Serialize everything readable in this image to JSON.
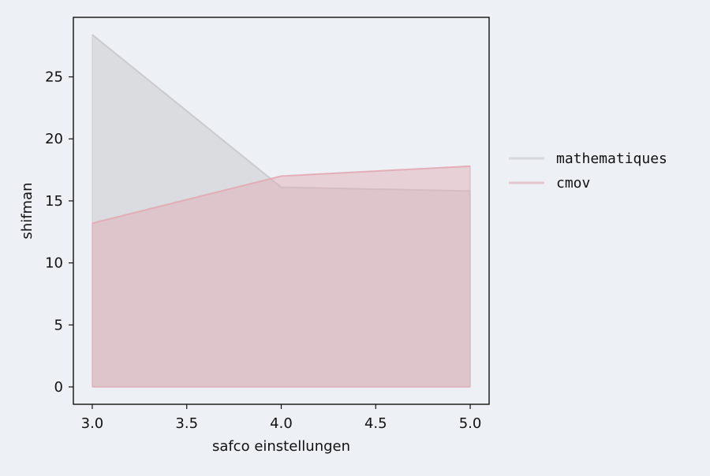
{
  "chart_data": {
    "type": "area",
    "title": "",
    "xlabel": "safco einstellungen",
    "ylabel": "shifman",
    "x": [
      3.0,
      4.0,
      5.0
    ],
    "x_ticks": [
      "3.0",
      "3.5",
      "4.0",
      "4.5",
      "5.0"
    ],
    "y_ticks": [
      "0",
      "5",
      "10",
      "15",
      "20",
      "25"
    ],
    "xlim": [
      2.9,
      5.1
    ],
    "ylim": [
      -1.4,
      29.8
    ],
    "grid": false,
    "legend_position": "right",
    "series": [
      {
        "name": "mathematiques",
        "values": [
          28.4,
          16.1,
          15.8
        ],
        "color": "#c8c8cc"
      },
      {
        "name": "cmov",
        "values": [
          13.2,
          17.0,
          17.8
        ],
        "color": "#e3a9b4"
      }
    ]
  },
  "colors": {
    "background": "#edf0f4",
    "axes": "#111111"
  }
}
